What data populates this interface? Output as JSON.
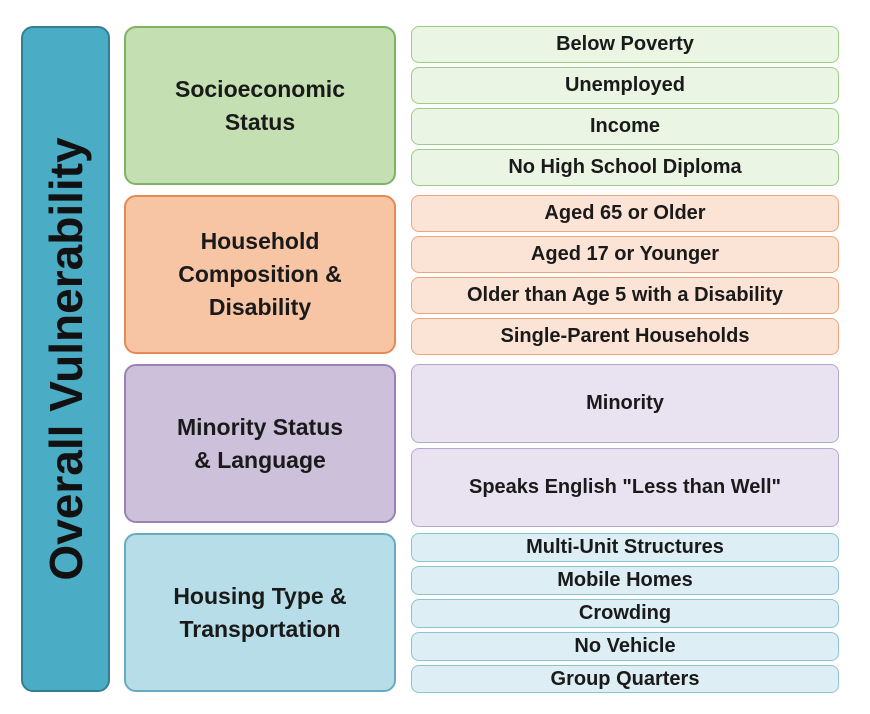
{
  "title": "Overall Vulnerability",
  "colors": {
    "overall": "#4bacc6",
    "socioeconomic": "#c4dfb1",
    "household": "#f7c4a4",
    "minority": "#ccc0da",
    "housing": "#b6dde8"
  },
  "groups": [
    {
      "label": "Socioeconomic\nStatus",
      "items": [
        "Below Poverty",
        "Unemployed",
        "Income",
        "No High School Diploma"
      ]
    },
    {
      "label": "Household\nComposition &\nDisability",
      "items": [
        "Aged 65 or Older",
        "Aged 17 or Younger",
        "Older than Age 5 with a Disability",
        "Single-Parent Households"
      ]
    },
    {
      "label": "Minority Status\n& Language",
      "items": [
        "Minority",
        "Speaks English \"Less than Well\""
      ]
    },
    {
      "label": "Housing Type &\nTransportation",
      "items": [
        "Multi-Unit Structures",
        "Mobile Homes",
        "Crowding",
        "No Vehicle",
        "Group Quarters"
      ]
    }
  ]
}
